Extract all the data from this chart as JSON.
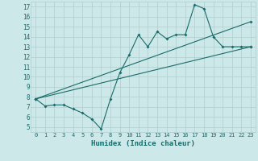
{
  "xlabel": "Humidex (Indice chaleur)",
  "bg_color": "#cce8e8",
  "grid_color": "#b0cccc",
  "line_color": "#1a6b6b",
  "xlim": [
    -0.5,
    23.5
  ],
  "ylim": [
    4.5,
    17.5
  ],
  "xticks": [
    0,
    1,
    2,
    3,
    4,
    5,
    6,
    7,
    8,
    9,
    10,
    11,
    12,
    13,
    14,
    15,
    16,
    17,
    18,
    19,
    20,
    21,
    22,
    23
  ],
  "yticks": [
    5,
    6,
    7,
    8,
    9,
    10,
    11,
    12,
    13,
    14,
    15,
    16,
    17
  ],
  "series1_x": [
    0,
    1,
    2,
    3,
    4,
    5,
    6,
    7,
    8,
    9,
    10,
    11,
    12,
    13,
    14,
    15,
    16,
    17,
    18,
    19,
    20,
    21,
    22,
    23
  ],
  "series1_y": [
    7.8,
    7.1,
    7.2,
    7.2,
    6.8,
    6.4,
    5.8,
    4.8,
    7.8,
    10.4,
    12.2,
    14.2,
    13.0,
    14.5,
    13.8,
    14.2,
    14.2,
    17.2,
    16.8,
    14.0,
    13.0,
    13.0,
    13.0,
    13.0
  ],
  "series2_x": [
    0,
    23
  ],
  "series2_y": [
    7.8,
    15.5
  ],
  "series3_x": [
    0,
    23
  ],
  "series3_y": [
    7.8,
    13.0
  ]
}
